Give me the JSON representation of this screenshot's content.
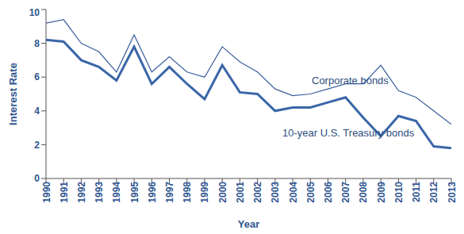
{
  "chart_data": {
    "type": "line",
    "x_label": "Year",
    "y_label": "Interest Rate",
    "x": [
      1990,
      1991,
      1992,
      1993,
      1994,
      1995,
      1996,
      1997,
      1998,
      1999,
      2000,
      2001,
      2002,
      2003,
      2004,
      2005,
      2006,
      2007,
      2008,
      2009,
      2010,
      2011,
      2012,
      2013
    ],
    "series": [
      {
        "name": "Corporate bonds",
        "color": "#3d5f9e",
        "values": [
          9.2,
          9.4,
          8.0,
          7.5,
          6.3,
          8.5,
          6.3,
          7.2,
          6.3,
          6.0,
          7.8,
          6.9,
          6.3,
          5.3,
          4.9,
          5.0,
          5.3,
          5.6,
          5.6,
          6.7,
          5.2,
          4.8,
          4.0,
          3.2
        ]
      },
      {
        "name": "10-year U.S. Treasury bonds",
        "color": "#3a66a8",
        "values": [
          8.2,
          8.1,
          7.0,
          6.6,
          5.8,
          7.8,
          5.6,
          6.6,
          5.6,
          4.7,
          6.7,
          5.1,
          5.0,
          4.0,
          4.2,
          4.2,
          4.5,
          4.8,
          3.6,
          2.5,
          3.7,
          3.4,
          1.9,
          1.8
        ]
      }
    ],
    "xlim": [
      1990,
      2013
    ],
    "xticks": [
      1990,
      1991,
      1992,
      1993,
      1994,
      1995,
      1996,
      1997,
      1998,
      1999,
      2000,
      2001,
      2002,
      2003,
      2004,
      2005,
      2006,
      2007,
      2008,
      2009,
      2010,
      2011,
      2012,
      2013
    ],
    "ylim": [
      0,
      10
    ],
    "yticks": [
      0,
      2,
      4,
      6,
      8,
      10
    ],
    "grid": false
  }
}
